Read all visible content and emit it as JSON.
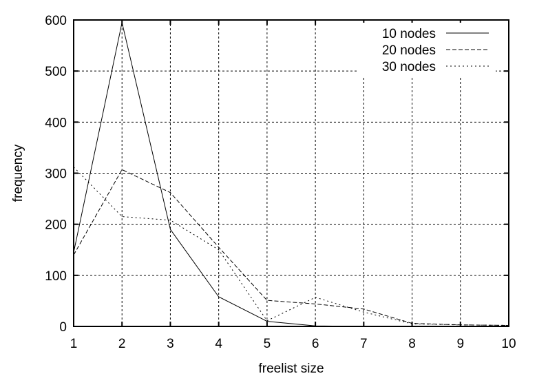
{
  "chart_data": {
    "type": "line",
    "title": "",
    "xlabel": "freelist size",
    "ylabel": "frequency",
    "xlim": [
      1,
      10
    ],
    "ylim": [
      0,
      600
    ],
    "xticks": [
      1,
      2,
      3,
      4,
      5,
      6,
      7,
      8,
      9,
      10
    ],
    "yticks": [
      0,
      100,
      200,
      300,
      400,
      500,
      600
    ],
    "grid": true,
    "legend_position": "top-right",
    "x": [
      1,
      2,
      3,
      4,
      5,
      6,
      7,
      8,
      9,
      10
    ],
    "series": [
      {
        "name": "10 nodes",
        "style": "solid",
        "values": [
          145,
          595,
          190,
          58,
          10,
          1,
          0,
          0,
          0,
          0
        ]
      },
      {
        "name": "20 nodes",
        "style": "dashed",
        "values": [
          140,
          307,
          262,
          155,
          51,
          44,
          34,
          6,
          3,
          2
        ]
      },
      {
        "name": "30 nodes",
        "style": "dotted",
        "values": [
          312,
          215,
          208,
          150,
          11,
          57,
          28,
          5,
          3,
          2
        ]
      }
    ]
  }
}
